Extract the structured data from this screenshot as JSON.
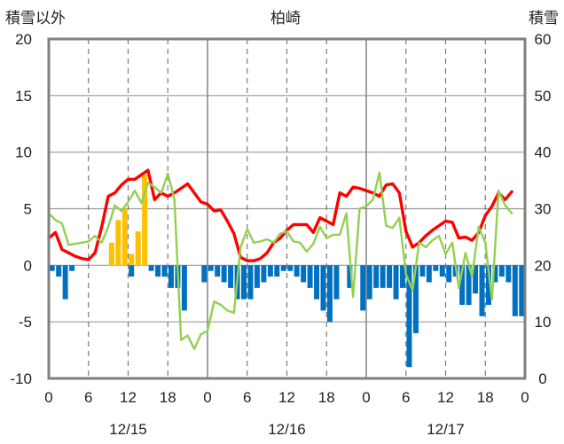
{
  "chart_data": {
    "type": "bar",
    "title": "柏崎",
    "ylabel_left": "積雪以外",
    "ylabel_right": "積雪",
    "ylim_left": [
      -10,
      20
    ],
    "ylim_right": [
      0,
      60
    ],
    "yticks_left": [
      20,
      15,
      10,
      5,
      0,
      -5,
      -10
    ],
    "yticks_right": [
      60,
      50,
      40,
      30,
      20,
      10,
      0
    ],
    "yticks_left_labels": [
      "20",
      "15",
      "10",
      "5",
      "0",
      "-5",
      "-10"
    ],
    "yticks_right_labels": [
      "60",
      "50",
      "40",
      "30",
      "20",
      "10",
      "0"
    ],
    "xlim": [
      0,
      72
    ],
    "xticks": [
      0,
      6,
      12,
      18,
      24,
      30,
      36,
      42,
      48,
      54,
      60,
      66,
      72
    ],
    "xtick_labels": [
      "0",
      "6",
      "12",
      "18",
      "0",
      "6",
      "12",
      "18",
      "0",
      "6",
      "12",
      "18",
      "0"
    ],
    "date_labels": [
      {
        "label": "12/15",
        "hour": 12
      },
      {
        "label": "12/16",
        "hour": 36
      },
      {
        "label": "12/17",
        "hour": 60
      }
    ],
    "grid": true,
    "colors": {
      "temperature": "#ff0000",
      "dewpoint": "#92d050",
      "snowfall": "#ffc000",
      "negative_bar": "#0070c0",
      "bottom_line": "#7030a0",
      "frame": "#808080"
    },
    "series": [
      {
        "type": "line",
        "color": "#ff0000",
        "axis": "left",
        "x": [
          0,
          1,
          2,
          3,
          4,
          5,
          6,
          7,
          8,
          9,
          10,
          11,
          12,
          13,
          14,
          15,
          16,
          17,
          18,
          19,
          20,
          21,
          22,
          23,
          24,
          25,
          26,
          27,
          28,
          29,
          30,
          31,
          32,
          33,
          34,
          35,
          36,
          37,
          38,
          39,
          40,
          41,
          42,
          43,
          44,
          45,
          46,
          47,
          48,
          49,
          50,
          51,
          52,
          53,
          54,
          55,
          56,
          57,
          58,
          59,
          60,
          61,
          62,
          63,
          64,
          65,
          66,
          67,
          68,
          69,
          70,
          71,
          72
        ],
        "values": [
          2.4,
          2.9,
          1.4,
          1.1,
          0.8,
          0.6,
          0.5,
          1.1,
          3.4,
          6.1,
          6.4,
          7.1,
          7.6,
          7.6,
          8.0,
          8.4,
          5.8,
          6.4,
          6.1,
          6.4,
          6.8,
          7.2,
          6.4,
          5.6,
          5.4,
          4.8,
          4.9,
          3.9,
          2.8,
          0.7,
          0.4,
          0.4,
          0.6,
          1.1,
          2.0,
          2.4,
          3.1,
          3.6,
          3.6,
          3.6,
          2.9,
          4.2,
          3.9,
          3.6,
          6.4,
          6.1,
          6.9,
          6.8,
          6.6,
          6.4,
          6.1,
          7.1,
          7.2,
          6.4,
          3.0,
          1.6,
          2.0,
          2.6,
          3.1,
          3.5,
          3.9,
          3.8,
          2.4,
          2.5,
          2.2,
          2.9,
          4.4,
          5.2,
          6.4,
          5.8,
          6.5,
          null,
          null
        ]
      },
      {
        "type": "line",
        "color": "#92d050",
        "axis": "left",
        "x": [
          0,
          1,
          2,
          3,
          4,
          5,
          6,
          7,
          8,
          9,
          10,
          11,
          12,
          13,
          14,
          15,
          16,
          17,
          18,
          19,
          20,
          21,
          22,
          23,
          24,
          25,
          26,
          27,
          28,
          29,
          30,
          31,
          32,
          33,
          34,
          35,
          36,
          37,
          38,
          39,
          40,
          41,
          42,
          43,
          44,
          45,
          46,
          47,
          48,
          49,
          50,
          51,
          52,
          53,
          54,
          55,
          56,
          57,
          58,
          59,
          60,
          61,
          62,
          63,
          64,
          65,
          66,
          67,
          68,
          69,
          70,
          71,
          72
        ],
        "values": [
          4.6,
          4.0,
          3.7,
          1.8,
          1.9,
          2.0,
          2.1,
          2.6,
          2.0,
          3.4,
          5.3,
          4.8,
          5.6,
          6.6,
          5.5,
          7.3,
          6.9,
          6.4,
          8.1,
          5.8,
          -6.6,
          -6.2,
          -7.4,
          -6.1,
          -5.8,
          -3.2,
          -3.5,
          -4.0,
          -4.2,
          1.6,
          3.2,
          2.0,
          2.1,
          2.3,
          2.0,
          2.8,
          3.0,
          2.1,
          2.0,
          1.2,
          1.9,
          3.4,
          2.4,
          2.7,
          2.7,
          4.6,
          -2.8,
          5.0,
          5.2,
          5.8,
          8.2,
          3.5,
          3.3,
          4.2,
          -0.8,
          -2.2,
          2.0,
          1.6,
          2.2,
          2.6,
          1.0,
          2.0,
          -2.0,
          1.1,
          -1.0,
          3.4,
          2.0,
          -3.0,
          6.6,
          5.3,
          4.6,
          null,
          null
        ]
      },
      {
        "type": "bar",
        "color": "#ffc000",
        "axis": "left",
        "x": [
          9,
          10,
          11,
          12,
          13,
          14
        ],
        "values": [
          2,
          4,
          5,
          1,
          3,
          8
        ]
      },
      {
        "type": "bar",
        "color": "#0070c0",
        "axis": "left",
        "x": [
          0,
          1,
          2,
          3,
          12,
          15,
          16,
          17,
          18,
          19,
          20,
          23,
          24,
          25,
          26,
          27,
          28,
          29,
          30,
          31,
          32,
          33,
          34,
          35,
          36,
          37,
          38,
          39,
          40,
          41,
          42,
          43,
          45,
          47,
          48,
          49,
          50,
          51,
          52,
          53,
          54,
          55,
          56,
          57,
          58,
          59,
          60,
          61,
          62,
          63,
          64,
          65,
          66,
          67,
          68,
          69,
          70,
          71
        ],
        "values": [
          -0.5,
          -1.0,
          -3.0,
          -0.5,
          -1.0,
          -0.5,
          -1.0,
          -1.0,
          -2.0,
          -2.0,
          -4.0,
          -1.5,
          -0.5,
          -1.0,
          -1.5,
          -2.0,
          -3.0,
          -3.0,
          -3.0,
          -2.0,
          -1.5,
          -1.0,
          -1.0,
          -0.5,
          -0.5,
          -1.0,
          -1.5,
          -2.0,
          -3.0,
          -4.0,
          -5.0,
          -3.0,
          -2.0,
          -4.0,
          -3.0,
          -2.0,
          -2.0,
          -2.0,
          -3.0,
          -2.0,
          -9.0,
          -6.0,
          -1.0,
          -1.5,
          -0.5,
          -1.0,
          -1.5,
          -1.0,
          -3.5,
          -3.5,
          -2.5,
          -4.5,
          -3.5,
          -1.5,
          -1.0,
          -1.5,
          -4.5,
          -4.5
        ]
      },
      {
        "type": "line",
        "color": "#7030a0",
        "axis": "right",
        "x": [
          0,
          72
        ],
        "values": [
          0,
          0
        ]
      }
    ]
  }
}
